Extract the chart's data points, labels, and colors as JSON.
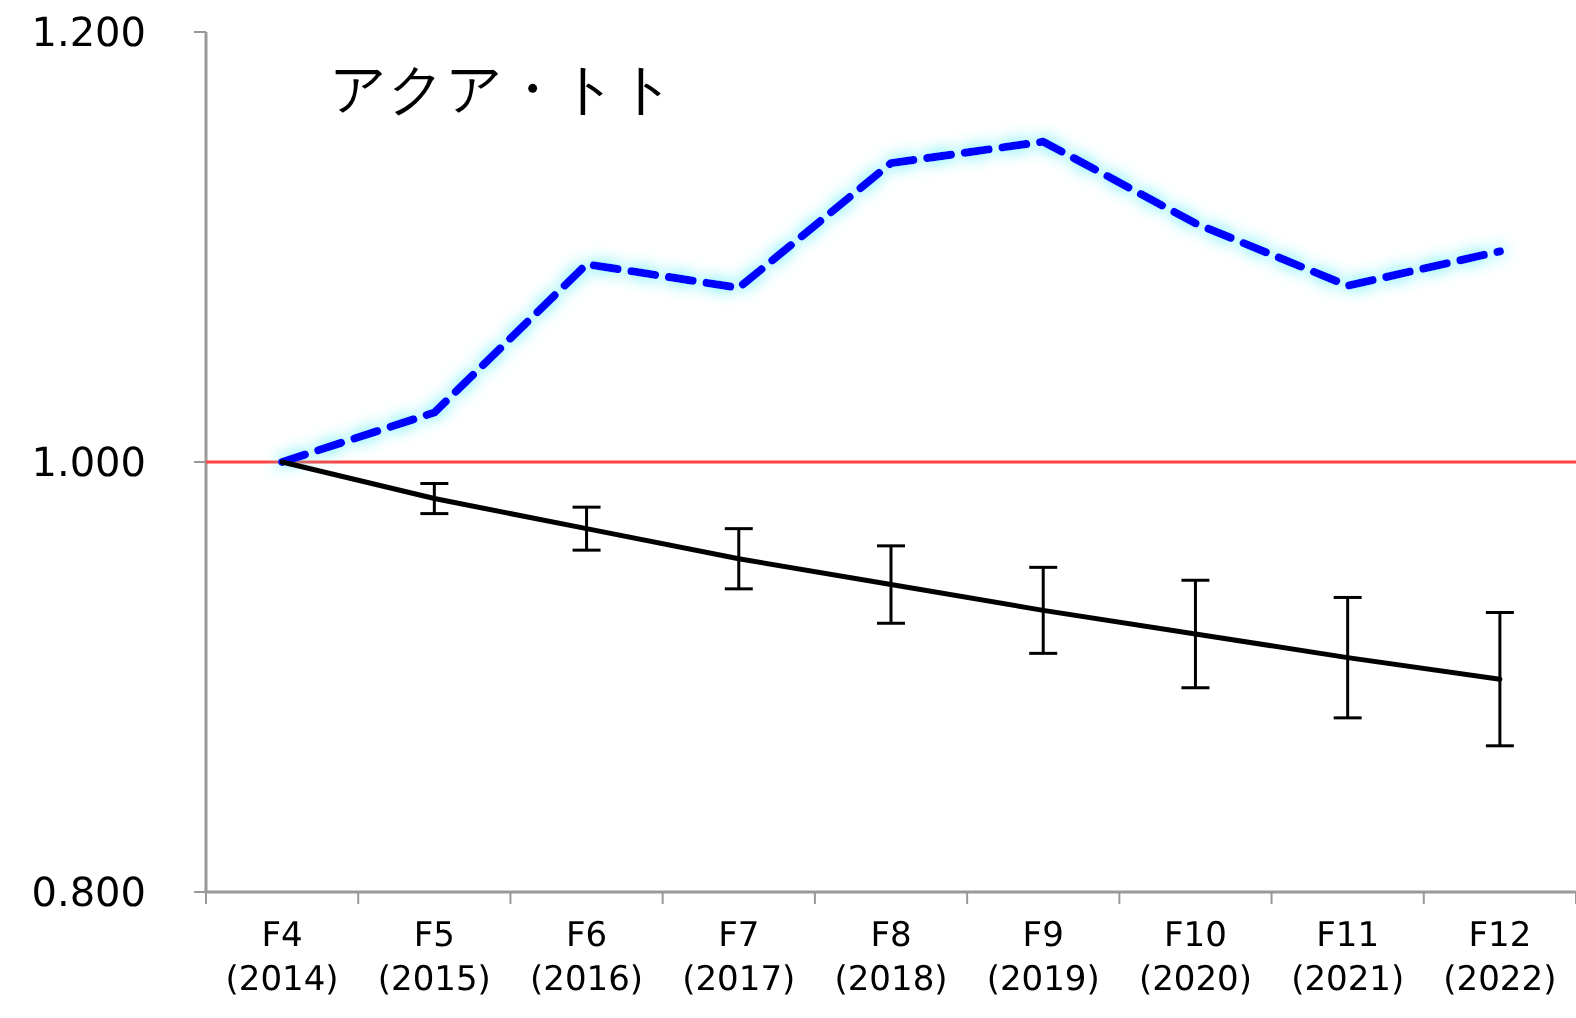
{
  "chart_data": {
    "type": "line",
    "title": "アクア・トト",
    "categories": [
      "F4 (2014)",
      "F5 (2015)",
      "F6 (2016)",
      "F7 (2017)",
      "F8 (2018)",
      "F9 (2019)",
      "F10 (2020)",
      "F11 (2021)",
      "F12 (2022)"
    ],
    "series": [
      {
        "color": "#0000ff",
        "line_style": "dashed",
        "values": [
          1.0,
          1.023,
          1.092,
          1.081,
          1.139,
          1.149,
          1.111,
          1.082,
          1.098
        ]
      },
      {
        "color": "#000000",
        "line_style": "solid",
        "values": [
          1.0,
          0.983,
          0.969,
          0.955,
          0.943,
          0.931,
          0.92,
          0.909,
          0.899
        ],
        "errors": [
          null,
          0.007,
          0.01,
          0.014,
          0.018,
          0.02,
          0.025,
          0.028,
          0.031
        ]
      }
    ],
    "ylim": [
      0.8,
      1.2
    ],
    "yticks": [
      {
        "value": 0.8,
        "label": "0.800"
      },
      {
        "value": 1.0,
        "label": "1.000"
      },
      {
        "value": 1.2,
        "label": "1.200"
      }
    ],
    "ref_lines": [
      {
        "axis": "y",
        "value": 1.0,
        "color": "#ff4040"
      }
    ],
    "grid": false
  }
}
